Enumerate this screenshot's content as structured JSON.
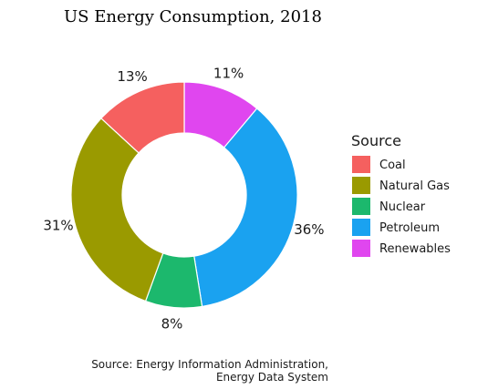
{
  "chart_data": {
    "type": "pie",
    "title": "US Energy Consumption, 2018",
    "legend_title": "Source",
    "legend_position": "right",
    "slices": [
      {
        "label": "Renewables",
        "value": 11,
        "pct_label": "11%",
        "color": "#e046ef"
      },
      {
        "label": "Petroleum",
        "value": 36,
        "pct_label": "36%",
        "color": "#1aa2f0"
      },
      {
        "label": "Nuclear",
        "value": 8,
        "pct_label": "8%",
        "color": "#1cb86d"
      },
      {
        "label": "Natural Gas",
        "value": 31,
        "pct_label": "31%",
        "color": "#9a9a00"
      },
      {
        "label": "Coal",
        "value": 13,
        "pct_label": "13%",
        "color": "#f5605f"
      }
    ],
    "legend_order": [
      "Coal",
      "Natural Gas",
      "Nuclear",
      "Petroleum",
      "Renewables"
    ],
    "caption_lines": [
      "Source: Energy Information Administration,",
      "Energy Data System"
    ]
  }
}
